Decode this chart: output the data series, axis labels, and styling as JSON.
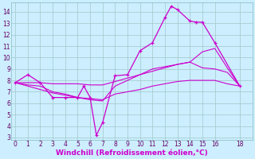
{
  "xlabel": "Windchill (Refroidissement éolien,°C)",
  "bg_color": "#cceeff",
  "line_color": "#cc00cc",
  "xlim": [
    -0.3,
    19.0
  ],
  "ylim": [
    2.8,
    14.8
  ],
  "xticks": [
    0,
    1,
    2,
    3,
    4,
    5,
    6,
    7,
    8,
    9,
    10,
    11,
    12,
    13,
    14,
    15,
    16,
    18
  ],
  "yticks": [
    3,
    4,
    5,
    6,
    7,
    8,
    9,
    10,
    11,
    12,
    13,
    14
  ],
  "curve_main_x": [
    0,
    1,
    2,
    3,
    4,
    5,
    5.5,
    6,
    6.5,
    7,
    8,
    9,
    10,
    11,
    12,
    12.5,
    13,
    14,
    14.5,
    15,
    16,
    18
  ],
  "curve_main_y": [
    7.8,
    8.5,
    7.8,
    6.5,
    6.5,
    6.5,
    7.5,
    6.5,
    3.2,
    4.3,
    8.4,
    8.5,
    10.6,
    11.3,
    13.5,
    14.5,
    14.2,
    13.2,
    13.1,
    13.1,
    11.3,
    7.5
  ],
  "curve2_x": [
    0,
    1,
    2,
    3,
    4,
    5,
    6,
    7,
    8,
    9,
    10,
    11,
    12,
    13,
    14,
    15,
    16,
    17,
    18
  ],
  "curve2_y": [
    7.8,
    7.8,
    7.8,
    7.7,
    7.7,
    7.7,
    7.6,
    7.6,
    7.9,
    8.2,
    8.5,
    8.8,
    9.1,
    9.4,
    9.6,
    10.5,
    10.8,
    9.1,
    7.5
  ],
  "curve3_x": [
    0,
    1,
    2,
    3,
    4,
    5,
    6,
    7,
    8,
    9,
    10,
    11,
    12,
    13,
    14,
    15,
    16,
    17,
    18
  ],
  "curve3_y": [
    7.8,
    7.6,
    7.5,
    7.0,
    6.8,
    6.5,
    6.3,
    6.2,
    7.5,
    8.0,
    8.5,
    9.0,
    9.2,
    9.4,
    9.6,
    9.1,
    9.0,
    8.7,
    7.5
  ],
  "curve4_x": [
    0,
    1,
    2,
    3,
    4,
    5,
    6,
    7,
    8,
    9,
    10,
    11,
    12,
    13,
    14,
    15,
    16,
    17,
    18
  ],
  "curve4_y": [
    7.8,
    7.5,
    7.2,
    6.9,
    6.7,
    6.5,
    6.4,
    6.3,
    6.8,
    7.0,
    7.2,
    7.5,
    7.7,
    7.9,
    8.0,
    8.0,
    8.0,
    7.7,
    7.5
  ],
  "grid_color": "#a0c8c8",
  "tick_color": "#660066",
  "tick_fontsize": 5.5,
  "xlabel_fontsize": 6.5
}
